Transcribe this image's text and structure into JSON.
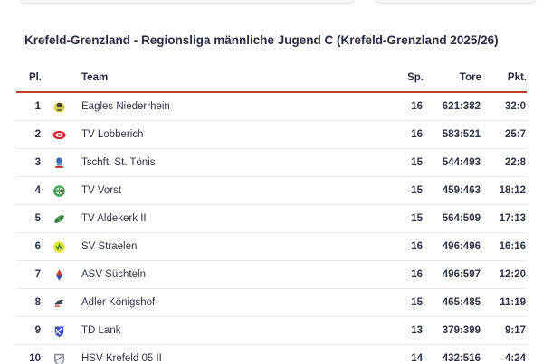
{
  "header": {
    "title": "Krefeld-Grenzland - Regionsliga männliche Jugend C (Krefeld-Grenzland 2025/26)"
  },
  "table": {
    "accent_color": "#c23b2a",
    "text_color": "#2d3349",
    "headers": {
      "pl": "Pl.",
      "team": "Team",
      "sp": "Sp.",
      "tore": "Tore",
      "pkt": "Pkt."
    },
    "rows": [
      {
        "pl": "1",
        "team": "Eagles Niederrhein",
        "sp": "16",
        "tore": "621:382",
        "pkt": "32:0",
        "logo": "eagles-niederrhein-logo",
        "logo_colors": [
          "#d8cc4c",
          "#4a4234",
          "#c03a2e"
        ]
      },
      {
        "pl": "2",
        "team": "TV Lobberich",
        "sp": "16",
        "tore": "583:521",
        "pkt": "25:7",
        "logo": "tv-lobberich-logo",
        "logo_colors": [
          "#d6242e",
          "#ffffff"
        ]
      },
      {
        "pl": "3",
        "team": "Tschft. St. Tönis",
        "sp": "15",
        "tore": "544:493",
        "pkt": "22:8",
        "logo": "tschft-st-toenis-logo",
        "logo_colors": [
          "#3a6fb5",
          "#c4302b"
        ]
      },
      {
        "pl": "4",
        "team": "TV Vorst",
        "sp": "15",
        "tore": "459:463",
        "pkt": "18:12",
        "logo": "tv-vorst-logo",
        "logo_colors": [
          "#41a05a",
          "#bfe4c8"
        ]
      },
      {
        "pl": "5",
        "team": "TV Aldekerk II",
        "sp": "15",
        "tore": "564:509",
        "pkt": "17:13",
        "logo": "tv-aldekerk-logo",
        "logo_colors": [
          "#4c9a52",
          "#1f5c2c"
        ]
      },
      {
        "pl": "6",
        "team": "SV Straelen",
        "sp": "16",
        "tore": "496:496",
        "pkt": "16:16",
        "logo": "sv-straelen-logo",
        "logo_colors": [
          "#e3e239",
          "#2e7d3c"
        ]
      },
      {
        "pl": "7",
        "team": "ASV Süchteln",
        "sp": "16",
        "tore": "496:597",
        "pkt": "12:20",
        "logo": "asv-suechteln-logo",
        "logo_colors": [
          "#cf4332",
          "#3c4f9e"
        ]
      },
      {
        "pl": "8",
        "team": "Adler Königshof",
        "sp": "15",
        "tore": "465:485",
        "pkt": "11:19",
        "logo": "adler-koenigshof-logo",
        "logo_colors": [
          "#3c414d",
          "#c23b2a"
        ]
      },
      {
        "pl": "9",
        "team": "TD Lank",
        "sp": "13",
        "tore": "379:399",
        "pkt": "9:17",
        "logo": "td-lank-logo",
        "logo_colors": [
          "#3d55c4",
          "#ffffff"
        ]
      },
      {
        "pl": "10",
        "team": "HSV Krefeld 05 II",
        "sp": "14",
        "tore": "432:516",
        "pkt": "4:24",
        "logo": "hsv-krefeld-logo",
        "logo_colors": [
          "#858b96",
          "#eef0f3"
        ]
      }
    ]
  }
}
